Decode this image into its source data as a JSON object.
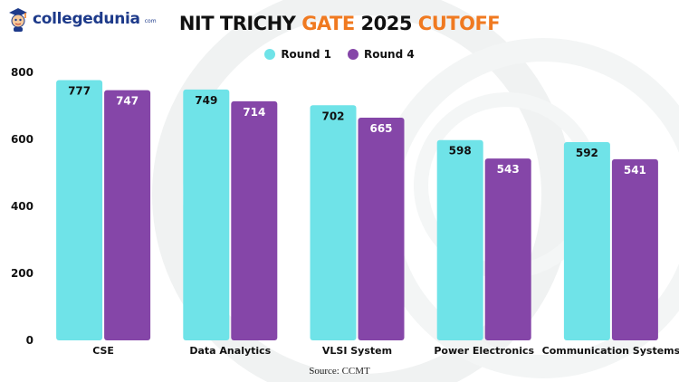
{
  "header": {
    "logo_text": "collegedunia",
    "logo_suffix": "com",
    "title_part1": "NIT TRICHY",
    "title_part2": "GATE",
    "title_part3": "2025",
    "title_part4": "CUTOFF"
  },
  "colors": {
    "round1": "#6fe3e8",
    "round4": "#8546a8",
    "accent": "#f07a21",
    "brand": "#1d3a8a"
  },
  "chart_data": {
    "type": "bar",
    "title": "NIT TRICHY GATE 2025 CUTOFF",
    "categories": [
      "CSE",
      "Data Analytics",
      "VLSI System",
      "Power Electronics",
      "Communication Systems"
    ],
    "series": [
      {
        "name": "Round 1",
        "values": [
          777,
          749,
          702,
          598,
          592
        ]
      },
      {
        "name": "Round 4",
        "values": [
          747,
          714,
          665,
          543,
          541
        ]
      }
    ],
    "ylim": [
      0,
      800
    ],
    "yticks": [
      "0",
      "200",
      "400",
      "600",
      "800"
    ],
    "legend_position": "top-center",
    "grid": false,
    "data_labels": true
  },
  "source_text": "Source: CCMT"
}
